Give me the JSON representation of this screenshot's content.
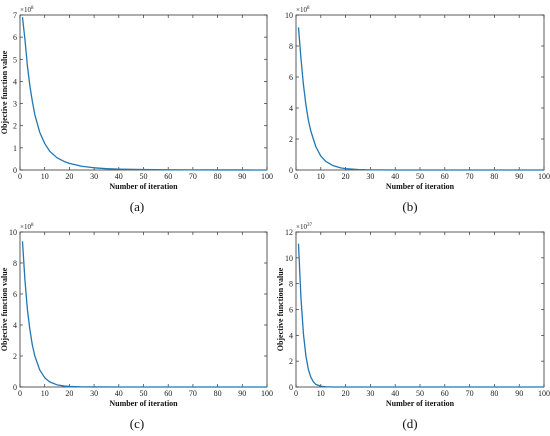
{
  "chart_data": [
    {
      "type": "line",
      "panel_label": "(a)",
      "xlabel": "Number of iteration",
      "ylabel": "Objective function value",
      "multiplier": "×10",
      "exponent": "8",
      "xlim": [
        0,
        100
      ],
      "ylim": [
        0,
        7
      ],
      "xticks": [
        0,
        10,
        20,
        30,
        40,
        50,
        60,
        70,
        80,
        90,
        100
      ],
      "yticks": [
        0,
        1,
        2,
        3,
        4,
        5,
        6,
        7
      ],
      "color": "#1f77b4",
      "x": [
        1,
        2,
        3,
        4,
        5,
        6,
        8,
        10,
        12,
        15,
        18,
        20,
        25,
        30,
        35,
        40,
        50,
        60,
        70,
        80,
        90,
        100
      ],
      "y": [
        6.9,
        5.9,
        4.7,
        3.8,
        3.1,
        2.5,
        1.7,
        1.2,
        0.85,
        0.55,
        0.38,
        0.3,
        0.17,
        0.1,
        0.06,
        0.04,
        0.02,
        0.01,
        0.005,
        0.003,
        0.002,
        0.001
      ]
    },
    {
      "type": "line",
      "panel_label": "(b)",
      "xlabel": "Number of iteration",
      "ylabel": "",
      "multiplier": "×10",
      "exponent": "8",
      "xlim": [
        0,
        100
      ],
      "ylim": [
        0,
        10
      ],
      "xticks": [
        0,
        10,
        20,
        30,
        40,
        50,
        60,
        70,
        80,
        90,
        100
      ],
      "yticks": [
        0,
        2,
        4,
        6,
        8,
        10
      ],
      "color": "#1f77b4",
      "x": [
        1,
        2,
        3,
        4,
        5,
        6,
        8,
        10,
        12,
        15,
        18,
        20,
        25,
        30,
        40,
        50,
        60,
        80,
        100
      ],
      "y": [
        9.2,
        7.2,
        5.5,
        4.2,
        3.2,
        2.5,
        1.5,
        0.9,
        0.55,
        0.28,
        0.14,
        0.09,
        0.03,
        0.01,
        0.002,
        0.001,
        0.0,
        0.0,
        0.0
      ]
    },
    {
      "type": "line",
      "panel_label": "(c)",
      "xlabel": "Number of iteration",
      "ylabel": "Objective function value",
      "multiplier": "×10",
      "exponent": "8",
      "xlim": [
        0,
        100
      ],
      "ylim": [
        0,
        10
      ],
      "xticks": [
        0,
        10,
        20,
        30,
        40,
        50,
        60,
        70,
        80,
        90,
        100
      ],
      "yticks": [
        0,
        2,
        4,
        6,
        8,
        10
      ],
      "color": "#1f77b4",
      "x": [
        1,
        2,
        3,
        4,
        5,
        6,
        8,
        10,
        12,
        15,
        18,
        20,
        25,
        30,
        40,
        60,
        80,
        100
      ],
      "y": [
        9.4,
        6.9,
        5.0,
        3.7,
        2.7,
        2.0,
        1.1,
        0.6,
        0.33,
        0.14,
        0.06,
        0.04,
        0.01,
        0.003,
        0.0,
        0.0,
        0.0,
        0.0
      ]
    },
    {
      "type": "line",
      "panel_label": "(d)",
      "xlabel": "Number of iteration",
      "ylabel": "Objective function value",
      "multiplier": "×10",
      "exponent": "37",
      "xlim": [
        0,
        100
      ],
      "ylim": [
        0,
        12
      ],
      "xticks": [
        0,
        10,
        20,
        30,
        40,
        50,
        60,
        70,
        80,
        90,
        100
      ],
      "yticks": [
        0,
        2,
        4,
        6,
        8,
        10,
        12
      ],
      "color": "#1f77b4",
      "x": [
        1,
        2,
        3,
        4,
        5,
        6,
        7,
        8,
        10,
        12,
        15,
        20,
        30,
        50,
        100
      ],
      "y": [
        11.1,
        6.9,
        4.1,
        2.4,
        1.35,
        0.75,
        0.4,
        0.2,
        0.06,
        0.02,
        0.0,
        0.0,
        0.0,
        0.0,
        0.0
      ]
    }
  ]
}
